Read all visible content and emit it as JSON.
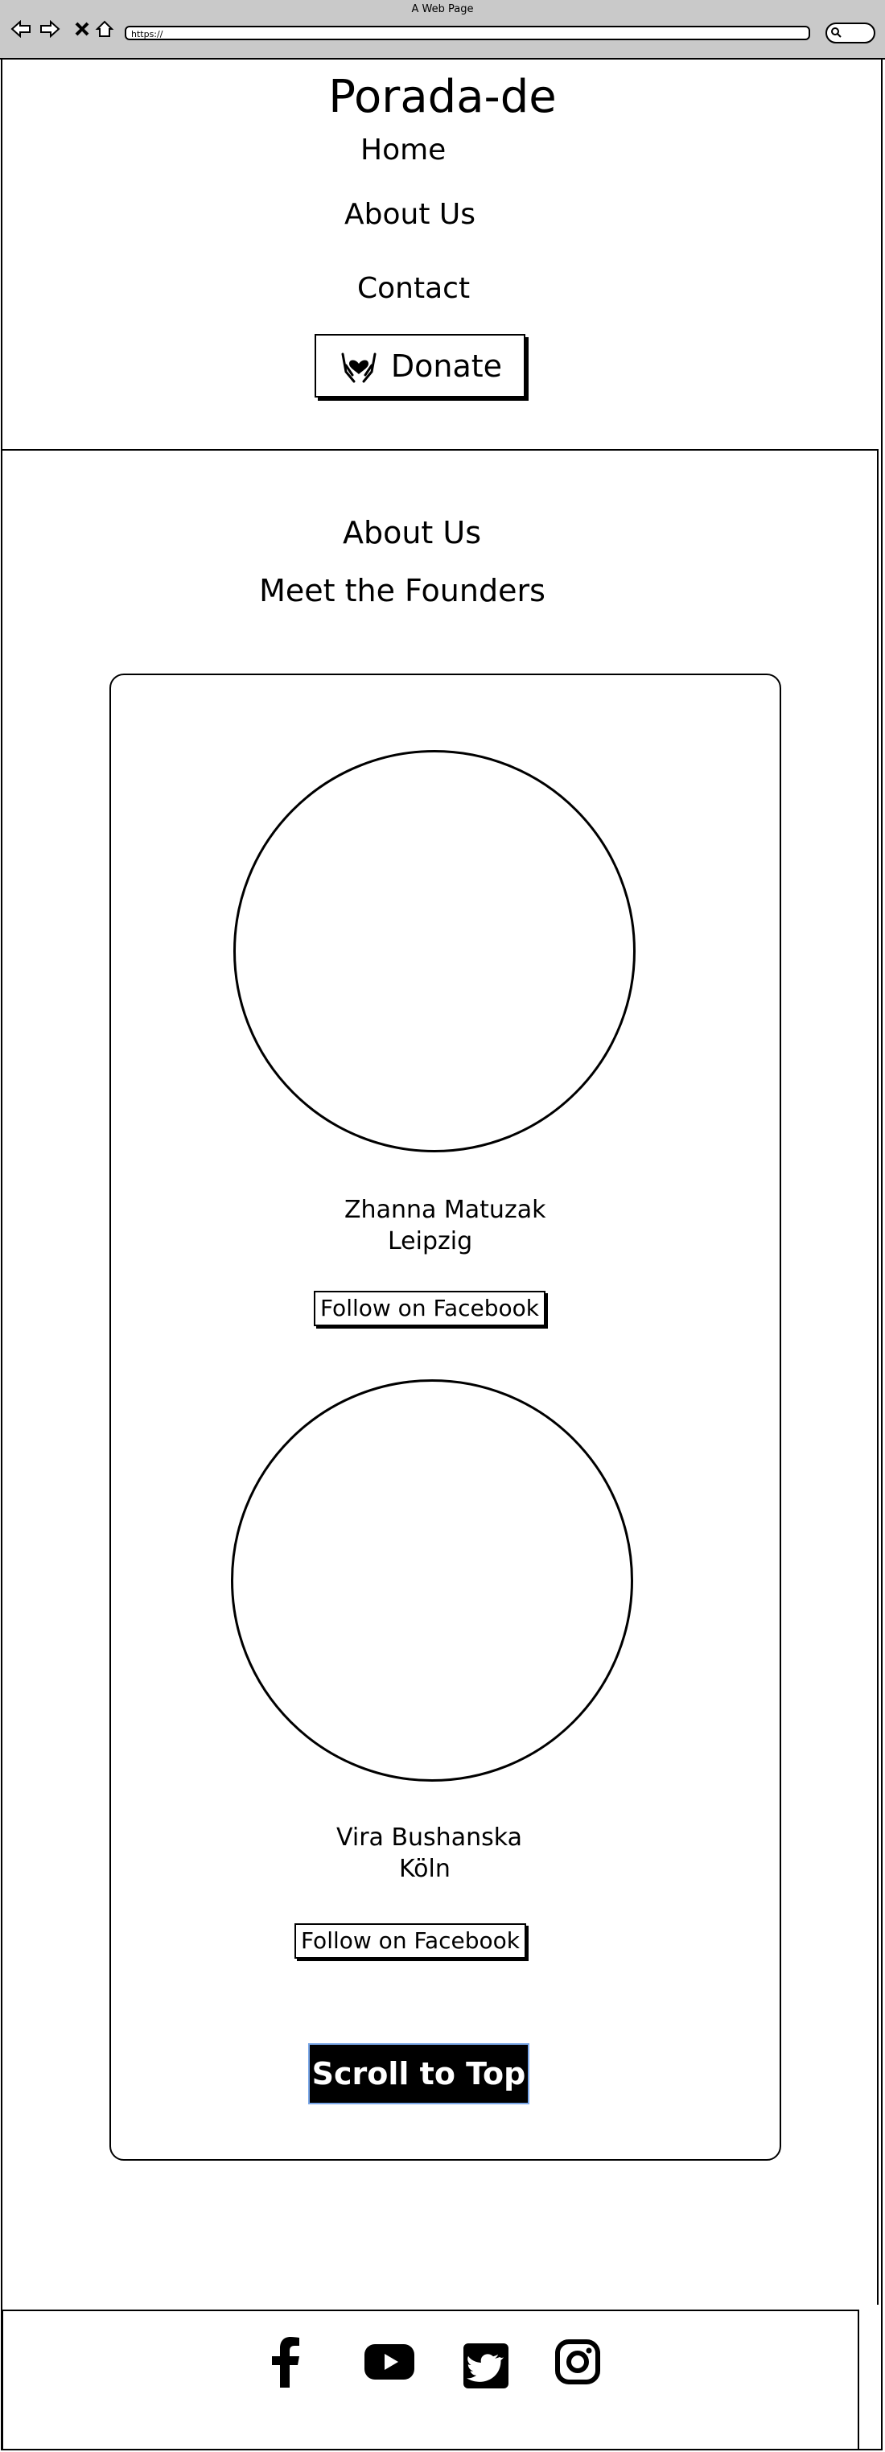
{
  "browser": {
    "window_title": "A Web Page",
    "url": "https://"
  },
  "header": {
    "site_title": "Porada-de",
    "nav": {
      "home": "Home",
      "about": "About Us",
      "contact": "Contact"
    },
    "donate_label": "Donate"
  },
  "main": {
    "section_title": "About Us",
    "section_subtitle": "Meet the Founders",
    "founders": [
      {
        "name": "Zhanna Matuzak",
        "city": "Leipzig",
        "button": "Follow on Facebook"
      },
      {
        "name": "Vira Bushanska",
        "city": "Köln",
        "button": "Follow on Facebook"
      }
    ],
    "scroll_top_label": "Scroll to Top"
  },
  "footer": {
    "social_icons": [
      "facebook-icon",
      "youtube-icon",
      "twitter-icon",
      "instagram-icon"
    ]
  }
}
